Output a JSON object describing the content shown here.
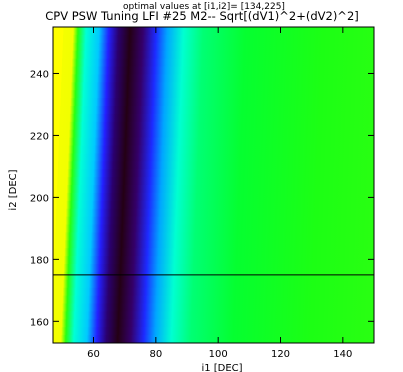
{
  "chart_data": {
    "type": "heatmap",
    "title_line1": "optimal values at [i1,i2]= [134,225]",
    "title_line2": "CPV PSW Tuning LFI #25 M2-- Sqrt[(dV1)^2+(dV2)^2]",
    "xlabel": "i1 [DEC]",
    "ylabel": "i2 [DEC]",
    "xlim": [
      47,
      150
    ],
    "ylim": [
      153,
      255
    ],
    "xticks": [
      "60",
      "80",
      "100",
      "120",
      "140"
    ],
    "xtick_values": [
      60,
      80,
      100,
      120,
      140
    ],
    "yticks": [
      "160",
      "180",
      "200",
      "220",
      "240"
    ],
    "ytick_values": [
      160,
      180,
      200,
      220,
      240
    ],
    "colormap": "rainbow",
    "minimum_valley": {
      "x_at_bottom": 69,
      "x_at_top": 73,
      "note_values": "valley of minimal values runs nearly vertically"
    },
    "reference_line": {
      "orientation": "horizontal",
      "y": 175
    },
    "colors": {
      "minimum": "#2a0020",
      "low": "#5a0a6e",
      "mid_low": "#1a1aff",
      "mid": "#00d8ff",
      "mid_high": "#00e060",
      "high": "#22ee10",
      "edge": "#ffff00"
    }
  }
}
